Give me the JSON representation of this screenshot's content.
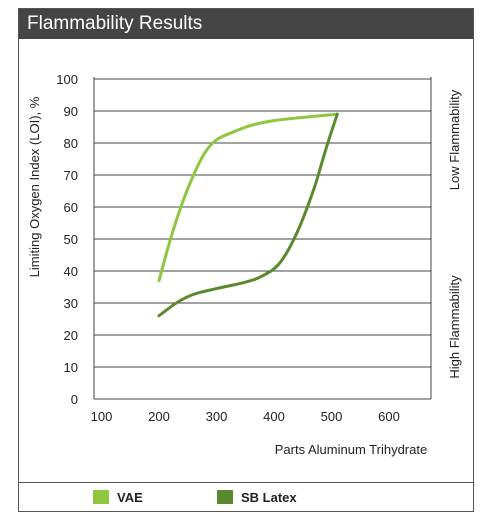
{
  "chart_data": {
    "type": "line",
    "title": "Flammability Results",
    "xlabel": "Parts Aluminum Trihydrate",
    "ylabel": "Limiting Oxygen Index (LOI), %",
    "xlim": [
      100,
      600
    ],
    "ylim": [
      0,
      100
    ],
    "x_ticks": [
      "100",
      "200",
      "300",
      "400",
      "500",
      "600"
    ],
    "y_ticks": [
      "0",
      "10",
      "20",
      "30",
      "40",
      "50",
      "60",
      "70",
      "80",
      "90",
      "100"
    ],
    "right_labels": {
      "top": "Low Flammability",
      "bottom": "High Flammability"
    },
    "grid": "horizontal",
    "legend_position": "bottom",
    "series": [
      {
        "name": "VAE",
        "color": "#8dc63f",
        "x": [
          200,
          220,
          240,
          260,
          280,
          300,
          330,
          360,
          400,
          450,
          510
        ],
        "y": [
          37,
          50,
          61,
          70,
          77,
          81,
          83.5,
          85.5,
          87,
          88,
          89
        ]
      },
      {
        "name": "SB Latex",
        "color": "#5b8a2e",
        "x": [
          200,
          230,
          260,
          300,
          350,
          380,
          410,
          440,
          470,
          490,
          510
        ],
        "y": [
          26,
          30,
          32.7,
          34.5,
          36.5,
          38.5,
          42.5,
          52,
          66,
          78,
          89
        ]
      }
    ]
  }
}
